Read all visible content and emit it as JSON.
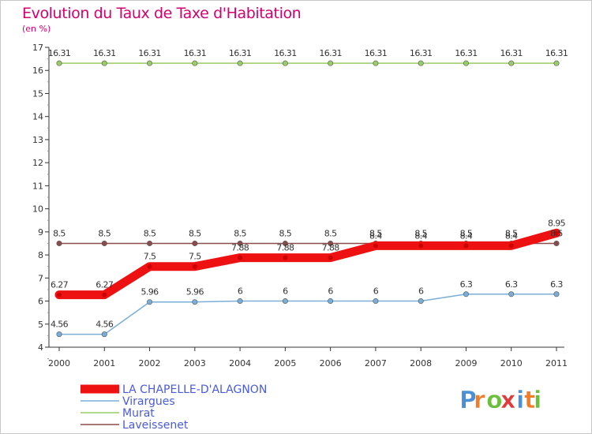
{
  "chart_data": {
    "type": "line",
    "title": "Evolution du Taux de Taxe d'Habitation",
    "ylabel": "(en %)",
    "xlabel": "",
    "ylim": [
      4,
      17
    ],
    "yticks": [
      "4",
      "5",
      "6",
      "7",
      "8",
      "9",
      "10",
      "11",
      "12",
      "13",
      "14",
      "15",
      "16",
      "17"
    ],
    "categories": [
      "2000",
      "2001",
      "2002",
      "2003",
      "2004",
      "2005",
      "2006",
      "2007",
      "2008",
      "2009",
      "2010",
      "2011"
    ],
    "series": [
      {
        "name": "Murat",
        "color": "#99cc66",
        "values": [
          16.31,
          16.31,
          16.31,
          16.31,
          16.31,
          16.31,
          16.31,
          16.31,
          16.31,
          16.31,
          16.31,
          16.31
        ],
        "labels": [
          "16.31",
          "16.31",
          "16.31",
          "16.31",
          "16.31",
          "16.31",
          "16.31",
          "16.31",
          "16.31",
          "16.31",
          "16.31",
          "16.31"
        ]
      },
      {
        "name": "Laveissenet",
        "color": "#8b4c4c",
        "values": [
          8.5,
          8.5,
          8.5,
          8.5,
          8.5,
          8.5,
          8.5,
          8.5,
          8.5,
          8.5,
          8.5,
          8.5
        ],
        "labels": [
          "8.5",
          "8.5",
          "8.5",
          "8.5",
          "8.5",
          "8.5",
          "8.5",
          "8.5",
          "8.5",
          "8.5",
          "8.5",
          "8.5"
        ]
      },
      {
        "name": "Virargues",
        "color": "#7aaed6",
        "values": [
          4.56,
          4.56,
          5.96,
          5.96,
          6,
          6,
          6,
          6,
          6,
          6.3,
          6.3,
          6.3
        ],
        "labels": [
          "4.56",
          "4.56",
          "5.96",
          "5.96",
          "6",
          "6",
          "6",
          "6",
          "6",
          "6.3",
          "6.3",
          "6.3"
        ]
      },
      {
        "name": "LA CHAPELLE-D'ALAGNON",
        "color": "#ee1111",
        "values": [
          6.27,
          6.27,
          7.5,
          7.5,
          7.88,
          7.88,
          7.88,
          8.4,
          8.4,
          8.4,
          8.4,
          8.95
        ],
        "labels": [
          "6.27",
          "6.27",
          "7.5",
          "7.5",
          "7.88",
          "7.88",
          "7.88",
          "8.4",
          "8.4",
          "8.4",
          "8.4",
          "8.95"
        ]
      }
    ],
    "legend": [
      "LA CHAPELLE-D'ALAGNON",
      "Virargues",
      "Murat",
      "Laveissenet"
    ],
    "legend_position": "bottom-left",
    "grid": false
  },
  "branding": {
    "logo": [
      "P",
      "r",
      "o",
      "x",
      "i",
      "t",
      "i"
    ],
    "logo_colors": [
      "#4a90d9",
      "#f07d28",
      "#6bbf3c",
      "#e03a3a",
      "#4a90d9",
      "#f07d28",
      "#6bbf3c"
    ]
  }
}
